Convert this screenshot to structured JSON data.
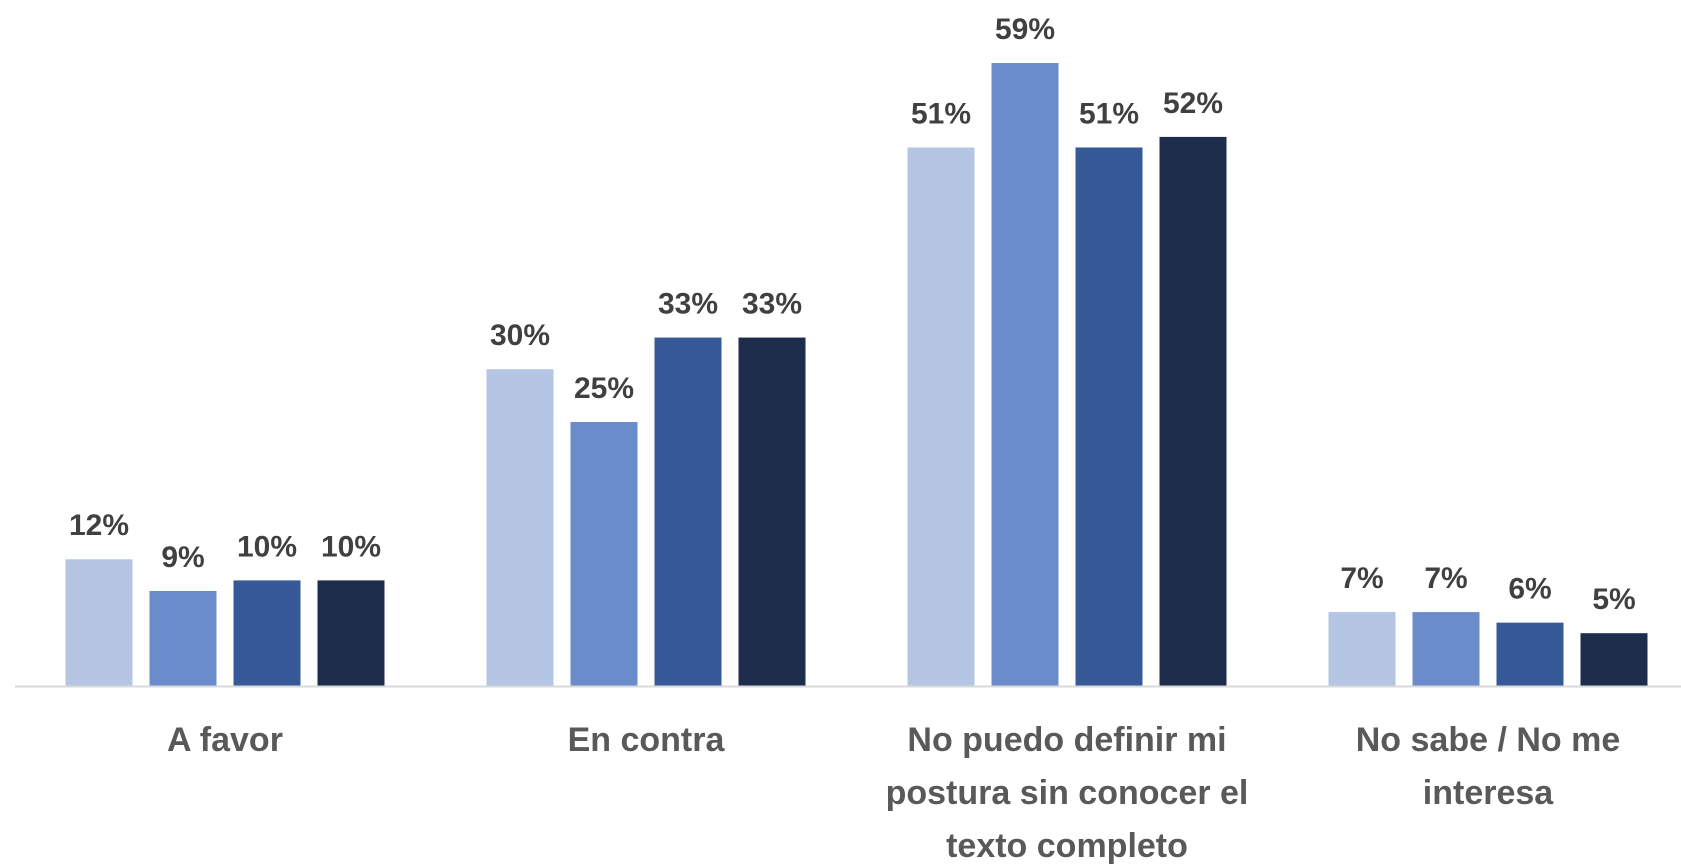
{
  "chart_data": {
    "type": "bar",
    "categories": [
      "A favor",
      "En contra",
      "No puedo definir mi postura sin conocer el texto completo",
      "No sabe / No me interesa"
    ],
    "series": [
      {
        "color": "#b4c6e4",
        "values": [
          12,
          30,
          51,
          7
        ],
        "value_labels": [
          "12%",
          "30%",
          "51%",
          "7%"
        ]
      },
      {
        "color": "#6a8ccb",
        "values": [
          9,
          25,
          59,
          7
        ],
        "value_labels": [
          "9%",
          "25%",
          "59%",
          "7%"
        ]
      },
      {
        "color": "#365a98",
        "values": [
          10,
          33,
          51,
          6
        ],
        "value_labels": [
          "10%",
          "33%",
          "51%",
          "6%"
        ]
      },
      {
        "color": "#1d2d4b",
        "values": [
          10,
          33,
          52,
          5
        ],
        "value_labels": [
          "10%",
          "33%",
          "52%",
          "5%"
        ]
      }
    ]
  }
}
